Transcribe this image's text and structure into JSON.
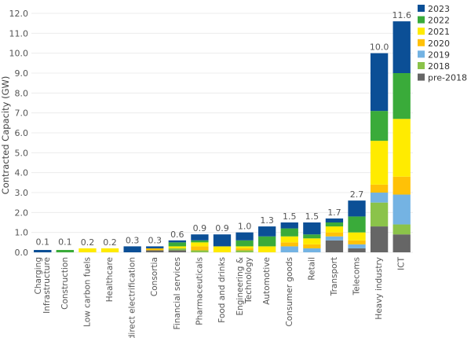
{
  "chart_data": {
    "type": "bar",
    "stacked": true,
    "ylabel": "Contracted Capacity (GW)",
    "xlabel": "",
    "ylim": [
      0,
      12
    ],
    "y_ticks": [
      "0.0",
      "1.0",
      "2.0",
      "3.0",
      "4.0",
      "5.0",
      "6.0",
      "7.0",
      "8.0",
      "9.0",
      "10.0",
      "11.0",
      "12.0"
    ],
    "grid": true,
    "legend_position": "top-right",
    "categories": [
      "Charging\nInfrastructure",
      "Construction",
      "Low carbon fuels",
      "Healthcare",
      "Indirect electrification",
      "Consortia",
      "Financial services",
      "Pharmaceuticals",
      "Food and drinks",
      "Engineering &\nTechnology",
      "Automotive",
      "Consumer goods",
      "Retail",
      "Transport",
      "Telecoms",
      "Heavy industry",
      "ICT"
    ],
    "totals": [
      "0.1",
      "0.1",
      "0.2",
      "0.2",
      "0.3",
      "0.3",
      "0.6",
      "0.9",
      "0.9",
      "1.0",
      "1.3",
      "1.5",
      "1.5",
      "1.7",
      "2.7",
      "10.0",
      "11.6"
    ],
    "series": [
      {
        "name": "pre-2018",
        "color": "#666666",
        "values": [
          0.0,
          0.0,
          0.0,
          0.0,
          0.0,
          0.1,
          0.1,
          0.0,
          0.0,
          0.0,
          0.0,
          0.0,
          0.0,
          0.6,
          0.2,
          1.3,
          0.9
        ]
      },
      {
        "name": "2018",
        "color": "#8bc34a",
        "values": [
          0.0,
          0.0,
          0.0,
          0.0,
          0.0,
          0.0,
          0.1,
          0.1,
          0.0,
          0.1,
          0.0,
          0.0,
          0.0,
          0.0,
          0.0,
          1.2,
          0.5
        ]
      },
      {
        "name": "2019",
        "color": "#74b3e3",
        "values": [
          0.0,
          0.0,
          0.0,
          0.0,
          0.0,
          0.0,
          0.0,
          0.0,
          0.0,
          0.0,
          0.0,
          0.3,
          0.2,
          0.2,
          0.2,
          0.5,
          1.5
        ]
      },
      {
        "name": "2020",
        "color": "#ffc107",
        "values": [
          0.0,
          0.0,
          0.0,
          0.0,
          0.0,
          0.1,
          0.0,
          0.2,
          0.0,
          0.1,
          0.0,
          0.2,
          0.2,
          0.2,
          0.2,
          0.4,
          0.9
        ]
      },
      {
        "name": "2021",
        "color": "#ffeb00",
        "values": [
          0.0,
          0.0,
          0.2,
          0.2,
          0.0,
          0.0,
          0.1,
          0.2,
          0.3,
          0.1,
          0.3,
          0.3,
          0.3,
          0.3,
          0.4,
          2.2,
          2.9
        ]
      },
      {
        "name": "2022",
        "color": "#3aab3a",
        "values": [
          0.0,
          0.1,
          0.0,
          0.0,
          0.0,
          0.0,
          0.2,
          0.1,
          0.0,
          0.3,
          0.5,
          0.4,
          0.2,
          0.2,
          0.8,
          1.5,
          2.3
        ]
      },
      {
        "name": "2023",
        "color": "#0b4f96",
        "values": [
          0.1,
          0.0,
          0.0,
          0.0,
          0.3,
          0.1,
          0.1,
          0.3,
          0.6,
          0.4,
          0.5,
          0.3,
          0.6,
          0.2,
          0.8,
          2.9,
          2.6
        ]
      }
    ],
    "legend_order": [
      "2023",
      "2022",
      "2021",
      "2020",
      "2019",
      "2018",
      "pre-2018"
    ]
  }
}
